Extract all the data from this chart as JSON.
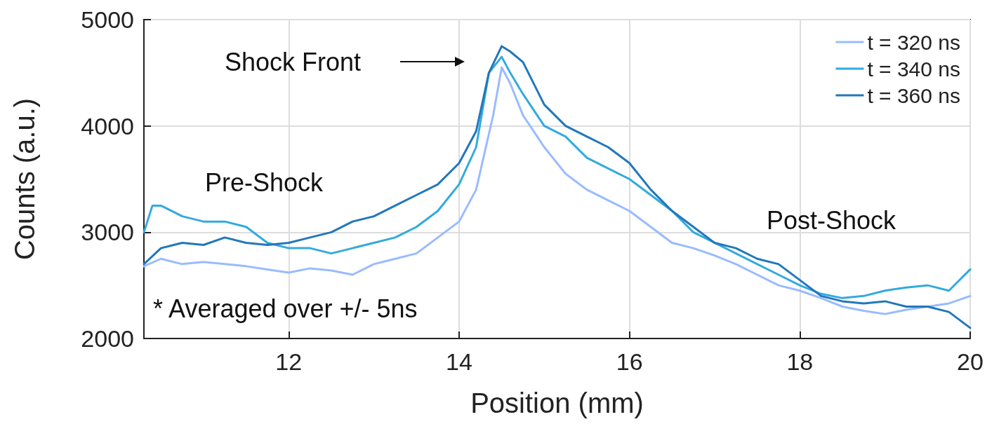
{
  "chart_data": {
    "type": "line",
    "xlabel": "Position (mm)",
    "ylabel": "Counts (a.u.)",
    "xlim": [
      10.3,
      20
    ],
    "ylim": [
      2000,
      5000
    ],
    "xticks": [
      12,
      14,
      16,
      18,
      20
    ],
    "yticks": [
      2000,
      3000,
      4000,
      5000
    ],
    "grid": true,
    "legend": "top right",
    "marker": "none",
    "line_style": "solid",
    "annotations": [
      "Shock Front",
      "Pre-Shock",
      "Post-Shock",
      "* Averaged over +/- 5ns"
    ],
    "series": [
      {
        "name": "t = 320 ns",
        "color": "#99bbff",
        "x": [
          10.3,
          10.5,
          10.75,
          11,
          11.25,
          11.5,
          11.75,
          12,
          12.25,
          12.5,
          12.75,
          13,
          13.25,
          13.5,
          13.75,
          14,
          14.2,
          14.4,
          14.5,
          14.6,
          14.75,
          15,
          15.25,
          15.5,
          15.75,
          16,
          16.25,
          16.5,
          16.75,
          17,
          17.25,
          17.5,
          17.75,
          18,
          18.25,
          18.5,
          18.75,
          19,
          19.25,
          19.5,
          19.75,
          20
        ],
        "values": [
          2680,
          2750,
          2700,
          2720,
          2700,
          2680,
          2650,
          2620,
          2660,
          2640,
          2600,
          2700,
          2750,
          2800,
          2950,
          3100,
          3400,
          4100,
          4550,
          4400,
          4100,
          3800,
          3550,
          3400,
          3300,
          3200,
          3050,
          2900,
          2850,
          2780,
          2700,
          2600,
          2500,
          2450,
          2380,
          2300,
          2260,
          2230,
          2270,
          2300,
          2330,
          2400
        ]
      },
      {
        "name": "t = 340 ns",
        "color": "#33aadd",
        "x": [
          10.3,
          10.4,
          10.5,
          10.75,
          11,
          11.25,
          11.5,
          11.75,
          12,
          12.25,
          12.5,
          12.75,
          13,
          13.25,
          13.5,
          13.75,
          14,
          14.2,
          14.35,
          14.5,
          14.6,
          14.75,
          15,
          15.25,
          15.5,
          15.75,
          16,
          16.25,
          16.5,
          16.75,
          17,
          17.25,
          17.5,
          17.75,
          18,
          18.25,
          18.5,
          18.75,
          19,
          19.25,
          19.5,
          19.75,
          20
        ],
        "values": [
          3000,
          3250,
          3250,
          3150,
          3100,
          3100,
          3050,
          2900,
          2850,
          2850,
          2800,
          2850,
          2900,
          2950,
          3050,
          3200,
          3450,
          3800,
          4500,
          4650,
          4500,
          4300,
          4000,
          3900,
          3700,
          3600,
          3500,
          3350,
          3200,
          3000,
          2900,
          2800,
          2700,
          2600,
          2500,
          2420,
          2380,
          2400,
          2450,
          2480,
          2500,
          2450,
          2650
        ]
      },
      {
        "name": "t = 360 ns",
        "color": "#2277bb",
        "x": [
          10.3,
          10.5,
          10.75,
          11,
          11.25,
          11.5,
          11.75,
          12,
          12.25,
          12.5,
          12.75,
          13,
          13.25,
          13.5,
          13.75,
          14,
          14.2,
          14.35,
          14.5,
          14.6,
          14.75,
          15,
          15.25,
          15.5,
          15.75,
          16,
          16.25,
          16.5,
          16.75,
          17,
          17.25,
          17.5,
          17.75,
          18,
          18.25,
          18.5,
          18.75,
          19,
          19.25,
          19.5,
          19.75,
          20
        ],
        "values": [
          2700,
          2850,
          2900,
          2880,
          2950,
          2900,
          2880,
          2900,
          2950,
          3000,
          3100,
          3150,
          3250,
          3350,
          3450,
          3650,
          3950,
          4500,
          4750,
          4700,
          4600,
          4200,
          4000,
          3900,
          3800,
          3650,
          3400,
          3200,
          3050,
          2900,
          2850,
          2750,
          2700,
          2550,
          2400,
          2350,
          2330,
          2350,
          2300,
          2300,
          2250,
          2100
        ]
      }
    ]
  }
}
